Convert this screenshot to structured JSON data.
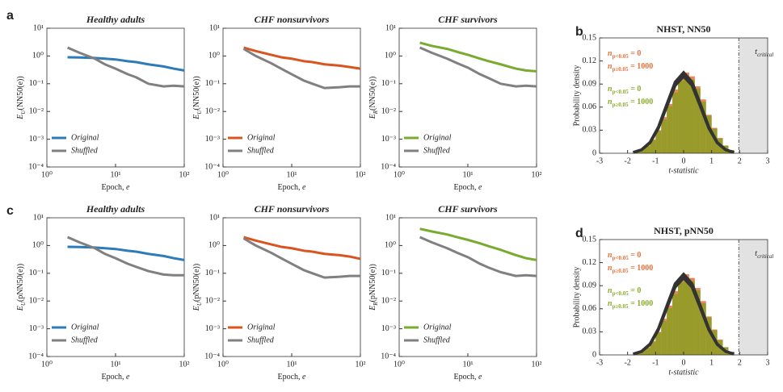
{
  "panel_labels": [
    "a",
    "b",
    "c",
    "d"
  ],
  "chart_data": [
    {
      "type": "line",
      "title": "Healthy adults",
      "xscale": "log",
      "yscale": "log",
      "x": [
        2,
        3,
        5,
        7,
        10,
        15,
        20,
        30,
        50,
        70,
        100
      ],
      "xlim": [
        1,
        100
      ],
      "xticks": [
        {
          "value": 1,
          "label": "10⁰"
        },
        {
          "value": 10,
          "label": "10¹"
        },
        {
          "value": 100,
          "label": "10²"
        }
      ],
      "ylim": [
        0.0001,
        10
      ],
      "yticks": [
        {
          "value": 0.0001,
          "label": "10⁻⁴"
        },
        {
          "value": 0.001,
          "label": "10⁻³"
        },
        {
          "value": 0.01,
          "label": "10⁻²"
        },
        {
          "value": 0.1,
          "label": "10⁻¹"
        },
        {
          "value": 1,
          "label": "10⁰"
        },
        {
          "value": 10,
          "label": "10¹"
        }
      ],
      "xlabel": [
        "Epoch, ",
        "e"
      ],
      "ylabel": [
        "E",
        "U",
        "(NN50(e))"
      ],
      "legend": "lower left",
      "series": [
        {
          "name": "Original",
          "color": "#2d7bb8",
          "values": [
            0.9,
            0.88,
            0.85,
            0.8,
            0.75,
            0.65,
            0.6,
            0.5,
            0.42,
            0.35,
            0.3
          ]
        },
        {
          "name": "Shuffled",
          "color": "#808080",
          "values": [
            2,
            1.3,
            0.8,
            0.5,
            0.35,
            0.22,
            0.17,
            0.1,
            0.08,
            0.085,
            0.08
          ]
        }
      ]
    },
    {
      "type": "line",
      "title": "CHF nonsurvivors",
      "xscale": "log",
      "yscale": "log",
      "x": [
        2,
        3,
        5,
        7,
        10,
        15,
        20,
        30,
        50,
        70,
        100
      ],
      "xlim": [
        1,
        100
      ],
      "xticks": [
        {
          "value": 1,
          "label": "10⁰"
        },
        {
          "value": 10,
          "label": "10¹"
        },
        {
          "value": 100,
          "label": "10²"
        }
      ],
      "ylim": [
        0.0001,
        10
      ],
      "yticks": [
        {
          "value": 0.0001,
          "label": "10⁻⁴"
        },
        {
          "value": 0.001,
          "label": "10⁻³"
        },
        {
          "value": 0.01,
          "label": "10⁻²"
        },
        {
          "value": 0.1,
          "label": "10⁻¹"
        },
        {
          "value": 1,
          "label": "10⁰"
        },
        {
          "value": 10,
          "label": "10¹"
        }
      ],
      "xlabel": [
        "Epoch, ",
        "e"
      ],
      "ylabel": [
        "E",
        "U",
        "(NN50(e))"
      ],
      "legend": "lower left",
      "series": [
        {
          "name": "Original",
          "color": "#d9541e",
          "values": [
            2,
            1.5,
            1.1,
            0.9,
            0.8,
            0.65,
            0.6,
            0.5,
            0.45,
            0.4,
            0.35
          ]
        },
        {
          "name": "Shuffled",
          "color": "#808080",
          "values": [
            1.8,
            1,
            0.55,
            0.35,
            0.22,
            0.13,
            0.1,
            0.07,
            0.075,
            0.08,
            0.08
          ]
        }
      ]
    },
    {
      "type": "line",
      "title": "CHF survivors",
      "xscale": "log",
      "yscale": "log",
      "x": [
        2,
        3,
        5,
        7,
        10,
        15,
        20,
        30,
        50,
        70,
        100
      ],
      "xlim": [
        1,
        100
      ],
      "xticks": [
        {
          "value": 1,
          "label": "10⁰"
        },
        {
          "value": 10,
          "label": "10¹"
        },
        {
          "value": 100,
          "label": "10²"
        }
      ],
      "ylim": [
        0.0001,
        10
      ],
      "yticks": [
        {
          "value": 0.0001,
          "label": "10⁻⁴"
        },
        {
          "value": 0.001,
          "label": "10⁻³"
        },
        {
          "value": 0.01,
          "label": "10⁻²"
        },
        {
          "value": 0.1,
          "label": "10⁻¹"
        },
        {
          "value": 1,
          "label": "10⁰"
        },
        {
          "value": 10,
          "label": "10¹"
        }
      ],
      "xlabel": [
        "Epoch, ",
        "e"
      ],
      "ylabel": [
        "E",
        "R",
        "(NN50(e))"
      ],
      "legend": "lower left",
      "series": [
        {
          "name": "Original",
          "color": "#78ab30",
          "values": [
            3,
            2.3,
            1.8,
            1.4,
            1.1,
            0.8,
            0.65,
            0.5,
            0.35,
            0.3,
            0.28
          ]
        },
        {
          "name": "Shuffled",
          "color": "#808080",
          "values": [
            2,
            1.3,
            0.8,
            0.55,
            0.38,
            0.22,
            0.16,
            0.1,
            0.08,
            0.085,
            0.08
          ]
        }
      ]
    },
    {
      "type": "histogram",
      "title": "NHST, NN50",
      "bins": [
        -1.8,
        -1.6,
        -1.4,
        -1.2,
        -1,
        -0.8,
        -0.6,
        -0.4,
        -0.2,
        0,
        0.2,
        0.4,
        0.6,
        0.8,
        1,
        1.2,
        1.4,
        1.6,
        1.8
      ],
      "xlim": [
        -3,
        3
      ],
      "xticks": [
        -3,
        -2,
        -1,
        0,
        1,
        2,
        3
      ],
      "ylim": [
        0,
        0.15
      ],
      "yticks": [
        0,
        0.03,
        0.06,
        0.09,
        0.12,
        0.15
      ],
      "xlabel": "t-statistic",
      "ylabel": "Probability density",
      "critical": 1.97,
      "critical_label": [
        "t",
        "critical"
      ],
      "series": [
        {
          "name": "p<0.05",
          "color": "#e8703a",
          "values": [
            0.002,
            0.005,
            0.01,
            0.018,
            0.03,
            0.047,
            0.064,
            0.083,
            0.099,
            0.105,
            0.1,
            0.087,
            0.07,
            0.05,
            0.033,
            0.02,
            0.01,
            0.004
          ]
        },
        {
          "name": "p≥0.05",
          "color": "#8a9d22",
          "values": [
            0.002,
            0.004,
            0.009,
            0.017,
            0.029,
            0.044,
            0.061,
            0.079,
            0.094,
            0.1,
            0.096,
            0.084,
            0.067,
            0.049,
            0.032,
            0.019,
            0.01,
            0.004
          ]
        }
      ],
      "fits": [
        {
          "color": "#333333",
          "x": [
            -1.8,
            -1.5,
            -1.2,
            -0.9,
            -0.6,
            -0.3,
            0,
            0.3,
            0.6,
            0.9,
            1.2,
            1.5,
            1.8
          ],
          "values": [
            0.0011,
            0.0046,
            0.0142,
            0.0341,
            0.0637,
            0.0926,
            0.105,
            0.0926,
            0.0637,
            0.0341,
            0.0142,
            0.0046,
            0.0011
          ]
        },
        {
          "color": "#333333",
          "x": [
            -1.8,
            -1.5,
            -1.2,
            -0.9,
            -0.6,
            -0.3,
            0,
            0.3,
            0.6,
            0.9,
            1.2,
            1.5,
            1.8
          ],
          "values": [
            0.0011,
            0.0044,
            0.0135,
            0.0325,
            0.0607,
            0.0882,
            0.1,
            0.0882,
            0.0607,
            0.0325,
            0.0135,
            0.0044,
            0.0011
          ]
        }
      ],
      "annotations": [
        {
          "parts": [
            "n",
            "p<0.05",
            " = 0"
          ],
          "color": "#e8703a"
        },
        {
          "parts": [
            "n",
            "p≥0.05",
            " = 1000"
          ],
          "color": "#e8703a"
        },
        {
          "parts": [
            "n",
            "p<0.05",
            " = 0"
          ],
          "color": "#8aab2a"
        },
        {
          "parts": [
            "n",
            "p≥0.05",
            " = 1000"
          ],
          "color": "#8aab2a"
        }
      ]
    },
    {
      "type": "line",
      "title": "Healthy adults",
      "xscale": "log",
      "yscale": "log",
      "x": [
        2,
        3,
        5,
        7,
        10,
        15,
        20,
        30,
        50,
        70,
        100
      ],
      "xlim": [
        1,
        100
      ],
      "xticks": [
        {
          "value": 1,
          "label": "10⁰"
        },
        {
          "value": 10,
          "label": "10¹"
        },
        {
          "value": 100,
          "label": "10²"
        }
      ],
      "ylim": [
        0.0001,
        10
      ],
      "yticks": [
        {
          "value": 0.0001,
          "label": "10⁻⁴"
        },
        {
          "value": 0.001,
          "label": "10⁻³"
        },
        {
          "value": 0.01,
          "label": "10⁻²"
        },
        {
          "value": 0.1,
          "label": "10⁻¹"
        },
        {
          "value": 1,
          "label": "10⁰"
        },
        {
          "value": 10,
          "label": "10¹"
        }
      ],
      "xlabel": [
        "Epoch, ",
        "e"
      ],
      "ylabel": [
        "E",
        "U",
        "(pNN50(e))"
      ],
      "legend": "lower left",
      "series": [
        {
          "name": "Original",
          "color": "#2d7bb8",
          "values": [
            0.9,
            0.88,
            0.85,
            0.8,
            0.75,
            0.65,
            0.6,
            0.5,
            0.42,
            0.35,
            0.3
          ]
        },
        {
          "name": "Shuffled",
          "color": "#808080",
          "values": [
            2,
            1.3,
            0.8,
            0.5,
            0.35,
            0.22,
            0.17,
            0.12,
            0.09,
            0.085,
            0.085
          ]
        }
      ]
    },
    {
      "type": "line",
      "title": "CHF nonsurvivors",
      "xscale": "log",
      "yscale": "log",
      "x": [
        2,
        3,
        5,
        7,
        10,
        15,
        20,
        30,
        50,
        70,
        100
      ],
      "xlim": [
        1,
        100
      ],
      "xticks": [
        {
          "value": 1,
          "label": "10⁰"
        },
        {
          "value": 10,
          "label": "10¹"
        },
        {
          "value": 100,
          "label": "10²"
        }
      ],
      "ylim": [
        0.0001,
        10
      ],
      "yticks": [
        {
          "value": 0.0001,
          "label": "10⁻⁴"
        },
        {
          "value": 0.001,
          "label": "10⁻³"
        },
        {
          "value": 0.01,
          "label": "10⁻²"
        },
        {
          "value": 0.1,
          "label": "10⁻¹"
        },
        {
          "value": 1,
          "label": "10⁰"
        },
        {
          "value": 10,
          "label": "10¹"
        }
      ],
      "xlabel": [
        "Epoch, ",
        "e"
      ],
      "ylabel": [
        "E",
        "U",
        "(pNN50(e))"
      ],
      "legend": "lower left",
      "series": [
        {
          "name": "Original",
          "color": "#d9541e",
          "values": [
            2,
            1.5,
            1.1,
            0.9,
            0.8,
            0.65,
            0.6,
            0.5,
            0.45,
            0.4,
            0.33
          ]
        },
        {
          "name": "Shuffled",
          "color": "#808080",
          "values": [
            1.8,
            1,
            0.55,
            0.35,
            0.22,
            0.13,
            0.1,
            0.07,
            0.075,
            0.08,
            0.08
          ]
        }
      ]
    },
    {
      "type": "line",
      "title": "CHF survivors",
      "xscale": "log",
      "yscale": "log",
      "x": [
        2,
        3,
        5,
        7,
        10,
        15,
        20,
        30,
        50,
        70,
        100
      ],
      "xlim": [
        1,
        100
      ],
      "xticks": [
        {
          "value": 1,
          "label": "10⁰"
        },
        {
          "value": 10,
          "label": "10¹"
        },
        {
          "value": 100,
          "label": "10²"
        }
      ],
      "ylim": [
        0.0001,
        10
      ],
      "yticks": [
        {
          "value": 0.0001,
          "label": "10⁻⁴"
        },
        {
          "value": 0.001,
          "label": "10⁻³"
        },
        {
          "value": 0.01,
          "label": "10⁻²"
        },
        {
          "value": 0.1,
          "label": "10⁻¹"
        },
        {
          "value": 1,
          "label": "10⁰"
        },
        {
          "value": 10,
          "label": "10¹"
        }
      ],
      "xlabel": [
        "Epoch, ",
        "e"
      ],
      "ylabel": [
        "E",
        "R",
        "(pNN50(e))"
      ],
      "legend": "lower left",
      "series": [
        {
          "name": "Original",
          "color": "#78ab30",
          "values": [
            4,
            3.2,
            2.5,
            2,
            1.6,
            1.2,
            0.95,
            0.7,
            0.45,
            0.35,
            0.3
          ]
        },
        {
          "name": "Shuffled",
          "color": "#808080",
          "values": [
            2,
            1.3,
            0.8,
            0.55,
            0.38,
            0.22,
            0.16,
            0.11,
            0.08,
            0.085,
            0.08
          ]
        }
      ]
    },
    {
      "type": "histogram",
      "title": "NHST, pNN50",
      "bins": [
        -1.8,
        -1.6,
        -1.4,
        -1.2,
        -1,
        -0.8,
        -0.6,
        -0.4,
        -0.2,
        0,
        0.2,
        0.4,
        0.6,
        0.8,
        1,
        1.2,
        1.4,
        1.6,
        1.8
      ],
      "xlim": [
        -3,
        3
      ],
      "xticks": [
        -3,
        -2,
        -1,
        0,
        1,
        2,
        3
      ],
      "ylim": [
        0,
        0.15
      ],
      "yticks": [
        0,
        0.03,
        0.06,
        0.09,
        0.12,
        0.15
      ],
      "xlabel": "t-statistic",
      "ylabel": "Probability density",
      "critical": 1.97,
      "critical_label": [
        "t",
        "critical"
      ],
      "series": [
        {
          "name": "p<0.05",
          "color": "#e8703a",
          "values": [
            0.002,
            0.005,
            0.01,
            0.018,
            0.03,
            0.047,
            0.064,
            0.083,
            0.099,
            0.105,
            0.1,
            0.087,
            0.07,
            0.05,
            0.033,
            0.02,
            0.01,
            0.004
          ]
        },
        {
          "name": "p≥0.05",
          "color": "#8a9d22",
          "values": [
            0.002,
            0.004,
            0.009,
            0.017,
            0.029,
            0.044,
            0.061,
            0.079,
            0.094,
            0.1,
            0.096,
            0.084,
            0.067,
            0.049,
            0.032,
            0.019,
            0.01,
            0.004
          ]
        }
      ],
      "fits": [
        {
          "color": "#333333",
          "x": [
            -1.8,
            -1.5,
            -1.2,
            -0.9,
            -0.6,
            -0.3,
            0,
            0.3,
            0.6,
            0.9,
            1.2,
            1.5,
            1.8
          ],
          "values": [
            0.0011,
            0.0046,
            0.0142,
            0.0341,
            0.0637,
            0.0926,
            0.105,
            0.0926,
            0.0637,
            0.0341,
            0.0142,
            0.0046,
            0.0011
          ]
        },
        {
          "color": "#333333",
          "x": [
            -1.8,
            -1.5,
            -1.2,
            -0.9,
            -0.6,
            -0.3,
            0,
            0.3,
            0.6,
            0.9,
            1.2,
            1.5,
            1.8
          ],
          "values": [
            0.0011,
            0.0044,
            0.0135,
            0.0325,
            0.0607,
            0.0882,
            0.1,
            0.0882,
            0.0607,
            0.0325,
            0.0135,
            0.0044,
            0.0011
          ]
        }
      ],
      "annotations": [
        {
          "parts": [
            "n",
            "p<0.05",
            " = 0"
          ],
          "color": "#e8703a"
        },
        {
          "parts": [
            "n",
            "p≥0.05",
            " = 1000"
          ],
          "color": "#e8703a"
        },
        {
          "parts": [
            "n",
            "p<0.05",
            " = 0"
          ],
          "color": "#8aab2a"
        },
        {
          "parts": [
            "n",
            "p≥0.05",
            " = 1000"
          ],
          "color": "#8aab2a"
        }
      ]
    }
  ]
}
